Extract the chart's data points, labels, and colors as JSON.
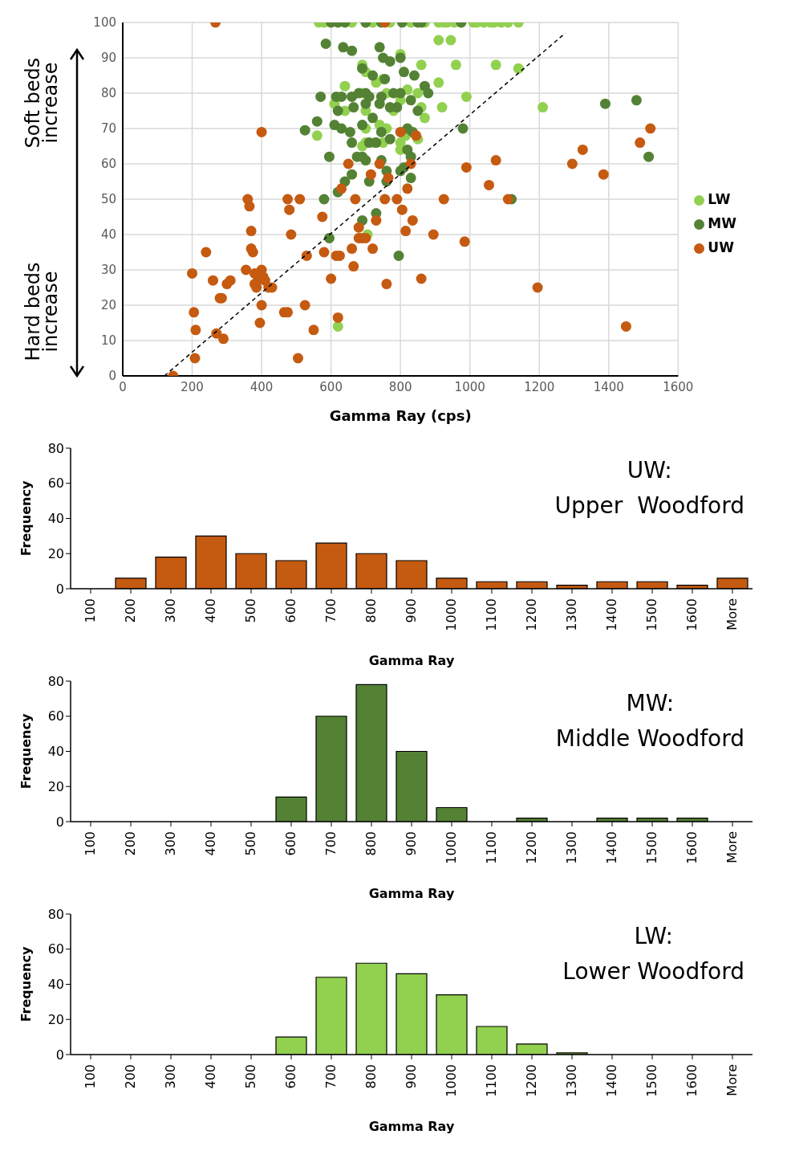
{
  "chart_data": [
    {
      "type": "scatter",
      "xlabel": "Gamma Ray (cps)",
      "annotations": [
        "Soft beds increase",
        "Hard beds increase"
      ],
      "xlim": [
        0,
        1600
      ],
      "xticks": [
        0,
        200,
        400,
        600,
        800,
        1000,
        1200,
        1400,
        1600
      ],
      "ylim": [
        0,
        100
      ],
      "yticks": [
        0,
        10,
        20,
        30,
        40,
        50,
        60,
        70,
        80,
        90,
        100
      ],
      "grid": true,
      "legend": "right",
      "marker": "circle",
      "series": [
        {
          "name": "LW",
          "color": "#92d050",
          "x": [
            565,
            580,
            660,
            700,
            720,
            770,
            830,
            870,
            910,
            925,
            935,
            955,
            975,
            1010,
            1020,
            1040,
            1060,
            1070,
            1090,
            1110,
            1140,
            910,
            945,
            1075,
            1140,
            960,
            860,
            690,
            800,
            700,
            640,
            690,
            760,
            820,
            850,
            910,
            920,
            990,
            750,
            800,
            730,
            610,
            640,
            700,
            780,
            860,
            870,
            560,
            700,
            725,
            750,
            800,
            800,
            850,
            830,
            700,
            740,
            760,
            1210,
            690,
            620,
            705,
            815
          ],
          "values": [
            100,
            100,
            100,
            100,
            100,
            100,
            100,
            100,
            100,
            100,
            100,
            100,
            100,
            100,
            100,
            100,
            100,
            100,
            100,
            100,
            100,
            95,
            95,
            88,
            87,
            88,
            88,
            88,
            91,
            86,
            82,
            80,
            80,
            81,
            80,
            83,
            76,
            79,
            84,
            78,
            83,
            77,
            75,
            75,
            75,
            76,
            73,
            68,
            66,
            66,
            66,
            64,
            66,
            67,
            null,
            70,
            71,
            70,
            76,
            65,
            14,
            40,
            68
          ]
        },
        {
          "name": "MW",
          "color": "#548235",
          "x": [
            600,
            620,
            640,
            700,
            745,
            755,
            805,
            850,
            860,
            975,
            585,
            635,
            660,
            740,
            750,
            770,
            800,
            810,
            840,
            720,
            755,
            690,
            570,
            615,
            630,
            660,
            680,
            700,
            710,
            745,
            780,
            800,
            830,
            850,
            870,
            880,
            620,
            665,
            700,
            740,
            770,
            790,
            690,
            720,
            560,
            525,
            610,
            630,
            655,
            710,
            730,
            745,
            770,
            820,
            835,
            980,
            595,
            660,
            675,
            700,
            745,
            760,
            810,
            820,
            830,
            640,
            690,
            660,
            760,
            800,
            620,
            580,
            710,
            830,
            1120,
            595,
            690,
            730,
            795,
            1390,
            1480,
            1515
          ],
          "values": [
            100,
            100,
            100,
            100,
            100,
            null,
            100,
            100,
            100,
            100,
            94,
            93,
            92,
            93,
            90,
            89,
            90,
            86,
            85,
            85,
            84,
            87,
            79,
            79,
            79,
            79,
            80,
            80,
            79,
            79,
            80,
            80,
            78,
            75,
            82,
            80,
            75,
            76,
            77,
            77,
            76,
            76,
            71,
            73,
            72,
            69.5,
            71,
            70,
            69,
            66,
            66,
            69,
            67,
            70,
            69,
            70,
            62,
            66,
            62,
            61,
            61,
            58,
            59,
            64,
            62,
            55,
            62,
            57,
            55,
            58,
            52,
            50,
            55,
            56,
            50,
            39,
            44,
            46,
            34,
            77,
            78,
            62
          ]
        },
        {
          "name": "UW",
          "color": "#c55a11",
          "x": [
            267,
            400,
            145,
            200,
            205,
            210,
            208,
            240,
            260,
            270,
            280,
            285,
            290,
            300,
            310,
            355,
            360,
            365,
            370,
            370,
            375,
            380,
            380,
            385,
            390,
            395,
            400,
            400,
            405,
            410,
            420,
            430,
            465,
            475,
            475,
            480,
            485,
            505,
            510,
            525,
            530,
            550,
            575,
            580,
            600,
            615,
            620,
            625,
            630,
            650,
            660,
            665,
            670,
            680,
            680,
            690,
            700,
            715,
            720,
            730,
            740,
            755,
            760,
            765,
            790,
            800,
            805,
            815,
            820,
            830,
            835,
            845,
            860,
            895,
            925,
            985,
            990,
            1055,
            1075,
            1110,
            1195,
            1295,
            1325,
            1385,
            1450,
            1490,
            1520,
            755
          ],
          "values": [
            100,
            69,
            0,
            29,
            18,
            13,
            5,
            35,
            27,
            12,
            22,
            22,
            10.5,
            26,
            27,
            30,
            50,
            48,
            41,
            36,
            35,
            29,
            26,
            25,
            27,
            15,
            20,
            30,
            28,
            27,
            25,
            25,
            18,
            18,
            50,
            47,
            40,
            5,
            50,
            20,
            34,
            13,
            45,
            35,
            27.5,
            34,
            16.5,
            34,
            53,
            60,
            36,
            31,
            50,
            42,
            39,
            39,
            39,
            57,
            36,
            44,
            60,
            50,
            26,
            56,
            50,
            69,
            47,
            41,
            53,
            60,
            44,
            68,
            27.5,
            40,
            50,
            38,
            59,
            54,
            61,
            50,
            25,
            60,
            64,
            57,
            14,
            66,
            70,
            100
          ]
        },
        {
          "type": "line",
          "color": "#000000",
          "line_style": "dashed",
          "marker": "none",
          "x": [
            120,
            1275
          ],
          "values": [
            0,
            97
          ]
        }
      ]
    },
    {
      "type": "bar",
      "categories": [
        "100",
        "200",
        "300",
        "400",
        "500",
        "600",
        "700",
        "800",
        "900",
        "1000",
        "1100",
        "1200",
        "1300",
        "1400",
        "1500",
        "1600",
        "More"
      ],
      "values": [
        0,
        6,
        18,
        30,
        20,
        16,
        26,
        20,
        16,
        6,
        4,
        4,
        2,
        4,
        4,
        2,
        6
      ],
      "color": "#c55a11",
      "xlabel": "Gamma Ray",
      "ylabel": "Frequency",
      "ylim": [
        0,
        80
      ],
      "yticks": [
        0,
        20,
        40,
        60,
        80
      ],
      "annotations": [
        "UW:",
        "Upper  Woodford"
      ]
    },
    {
      "type": "bar",
      "categories": [
        "100",
        "200",
        "300",
        "400",
        "500",
        "600",
        "700",
        "800",
        "900",
        "1000",
        "1100",
        "1200",
        "1300",
        "1400",
        "1500",
        "1600",
        "More"
      ],
      "values": [
        0,
        0,
        0,
        0,
        0,
        14,
        60,
        78,
        40,
        8,
        0,
        2,
        0,
        2,
        2,
        2,
        0
      ],
      "color": "#548235",
      "xlabel": "Gamma Ray",
      "ylabel": "Frequency",
      "ylim": [
        0,
        80
      ],
      "yticks": [
        0,
        20,
        40,
        60,
        80
      ],
      "annotations": [
        "MW:",
        "Middle Woodford"
      ]
    },
    {
      "type": "bar",
      "categories": [
        "100",
        "200",
        "300",
        "400",
        "500",
        "600",
        "700",
        "800",
        "900",
        "1000",
        "1100",
        "1200",
        "1300",
        "1400",
        "1500",
        "1600",
        "More"
      ],
      "values": [
        0,
        0,
        0,
        0,
        0,
        10,
        44,
        52,
        46,
        34,
        16,
        6,
        1,
        0,
        0,
        0,
        0
      ],
      "color": "#92d050",
      "xlabel": "Gamma Ray",
      "ylabel": "Frequency",
      "ylim": [
        0,
        80
      ],
      "yticks": [
        0,
        20,
        40,
        60,
        80
      ],
      "annotations": [
        "LW:",
        "Lower Woodford"
      ]
    }
  ]
}
